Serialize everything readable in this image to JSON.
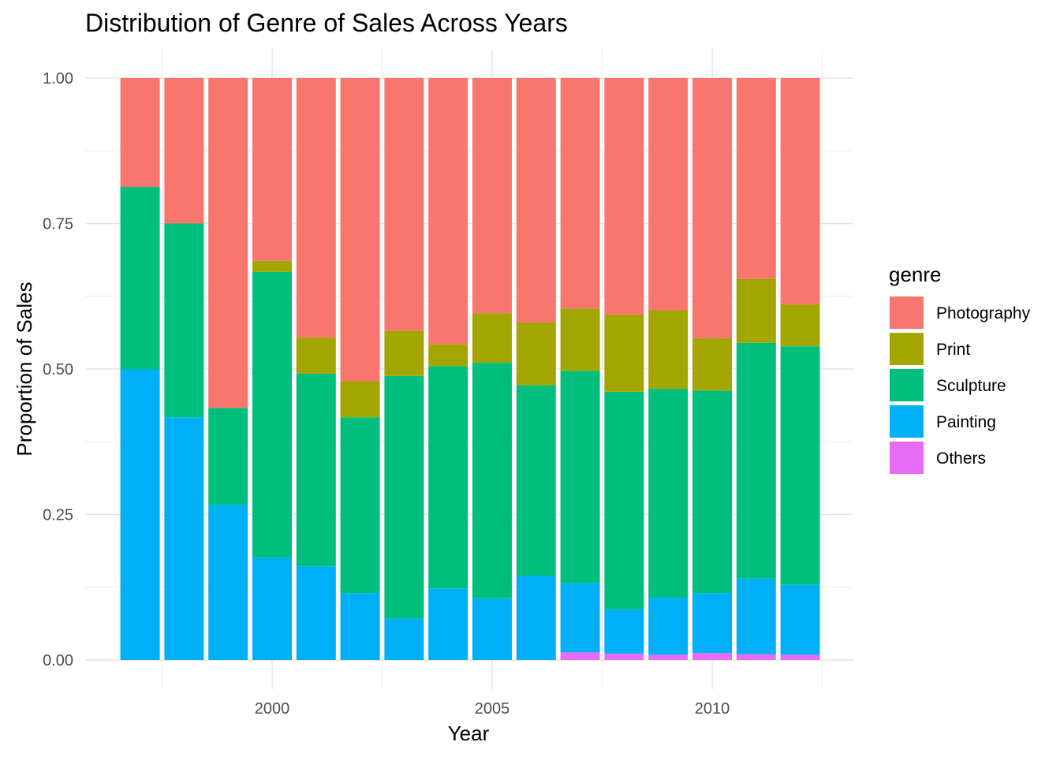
{
  "chart_data": {
    "type": "bar",
    "stacked": true,
    "title": "Distribution of Genre of Sales Across Years",
    "xlabel": "Year",
    "ylabel": "Proportion of Sales",
    "ylim": [
      0,
      1
    ],
    "y_ticks": [
      "0.00",
      "0.25",
      "0.50",
      "0.75",
      "1.00"
    ],
    "x_ticks": [
      "2000",
      "2005",
      "2010"
    ],
    "grid": true,
    "legend": {
      "title": "genre",
      "position": "right"
    },
    "categories": [
      1997,
      1998,
      1999,
      2000,
      2001,
      2002,
      2003,
      2004,
      2005,
      2006,
      2007,
      2008,
      2009,
      2010,
      2011,
      2012
    ],
    "series": [
      {
        "name": "Others",
        "color": "#E76BF3",
        "values": [
          0,
          0,
          0,
          0,
          0,
          0,
          0,
          0,
          0,
          0,
          0.013,
          0.011,
          0.009,
          0.012,
          0.01,
          0.009
        ]
      },
      {
        "name": "Painting",
        "color": "#00B0F6",
        "values": [
          0.5,
          0.417,
          0.267,
          0.176,
          0.161,
          0.115,
          0.071,
          0.123,
          0.106,
          0.145,
          0.119,
          0.076,
          0.098,
          0.103,
          0.13,
          0.12
        ]
      },
      {
        "name": "Sculpture",
        "color": "#00BF7D",
        "values": [
          0.313,
          0.333,
          0.166,
          0.491,
          0.331,
          0.302,
          0.417,
          0.382,
          0.405,
          0.327,
          0.365,
          0.374,
          0.359,
          0.348,
          0.405,
          0.41
        ]
      },
      {
        "name": "Print",
        "color": "#A3A500",
        "values": [
          0,
          0,
          0,
          0.019,
          0.062,
          0.062,
          0.078,
          0.038,
          0.085,
          0.108,
          0.107,
          0.133,
          0.135,
          0.09,
          0.11,
          0.072
        ]
      },
      {
        "name": "Photography",
        "color": "#F8766D",
        "values": [
          0.187,
          0.25,
          0.567,
          0.314,
          0.446,
          0.521,
          0.434,
          0.457,
          0.404,
          0.42,
          0.396,
          0.406,
          0.399,
          0.447,
          0.345,
          0.389
        ]
      }
    ],
    "legend_order": [
      "Photography",
      "Print",
      "Sculpture",
      "Painting",
      "Others"
    ]
  }
}
